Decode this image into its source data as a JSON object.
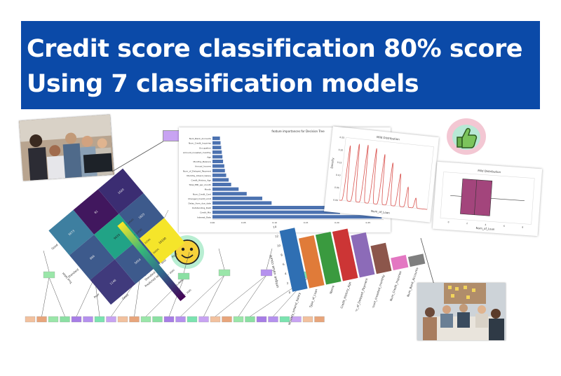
{
  "banner": {
    "line1": "Credit score classification 80% score",
    "line2": "Using 7 classification models",
    "bg_color": "#0b4aa8"
  },
  "feature_importance": {
    "title": "feature importances for Decision Tree",
    "features": [
      {
        "name": "Num_Bank_Accounts",
        "value": 0.012
      },
      {
        "name": "Num_Credit_Inquiries",
        "value": 0.013
      },
      {
        "name": "Occupation",
        "value": 0.014
      },
      {
        "name": "Amount_invested_monthly",
        "value": 0.015
      },
      {
        "name": "Age",
        "value": 0.016
      },
      {
        "name": "Monthly_Balance",
        "value": 0.017
      },
      {
        "name": "Annual_Income",
        "value": 0.019
      },
      {
        "name": "Num_of_Delayed_Payment",
        "value": 0.02
      },
      {
        "name": "Monthly_Inhand_Salary",
        "value": 0.022
      },
      {
        "name": "Credit_History_Age",
        "value": 0.026
      },
      {
        "name": "Total_EMI_per_month",
        "value": 0.03
      },
      {
        "name": "Month",
        "value": 0.042
      },
      {
        "name": "Num_Credit_Card",
        "value": 0.055
      },
      {
        "name": "Changed_Credit_Limit",
        "value": 0.08
      },
      {
        "name": "Delay_from_due_date",
        "value": 0.095
      },
      {
        "name": "Outstanding_Debt",
        "value": 0.182
      },
      {
        "name": "Credit_Mix",
        "value": 0.205
      },
      {
        "name": "Interest_Rate",
        "value": 0.272
      }
    ],
    "ticks": [
      "0.00",
      "0.05",
      "0.10",
      "0.15",
      "0.20",
      "0.25"
    ],
    "bar_color": "#4c72b0"
  },
  "kde_chart": {
    "title": "Mild Distribution",
    "xlabel": "Num_of_Loan",
    "ylabel": "Density",
    "yticks": [
      "0.25",
      "0.20",
      "0.15",
      "0.10",
      "0.05",
      "0.00"
    ],
    "color": "#d9534f"
  },
  "box_chart": {
    "title": "Mild Distribution",
    "xlabel": "Num_of_Loan",
    "color": "#a3457c",
    "xticks": [
      "0",
      "2",
      "4",
      "6",
      "8"
    ]
  },
  "confusion_matrix": {
    "cells": [
      "5673",
      "81",
      "1620",
      "866",
      "9033",
      "1825",
      "1146",
      "5654",
      "16100"
    ],
    "colors": [
      "#3e7fa0",
      "#41175e",
      "#3b2d72",
      "#3d5a8c",
      "#21a386",
      "#3d5a8c",
      "#403a7c",
      "#3d5a8c",
      "#f5e52a"
    ],
    "row_labels": [
      "Good",
      "Standard",
      "Poor"
    ],
    "xlabel": "Predicted label",
    "ylabel": "True label",
    "colorbar_ticks": [
      "16000",
      "14000",
      "12000",
      "10000",
      "8000",
      "6000",
      "4000",
      "2000"
    ]
  },
  "bar_chart": {
    "categories": [
      "Monthly_Inhand_Salary",
      "Type_of_Loan",
      "Name",
      "Credit_History_Age",
      "Num_of_Delayed_Payment",
      "Amount_invested_monthly",
      "Num_Credit_Inquiries",
      "Num_Bank_Accounts"
    ],
    "values": [
      14.8,
      12.1,
      12.1,
      12.0,
      10.2,
      6.8,
      3.0,
      2.4
    ],
    "colors": [
      "#2f6fb3",
      "#e07b39",
      "#3a9a3f",
      "#cc3535",
      "#8c6bb8",
      "#8c564b",
      "#e377c2",
      "#7f7f7f"
    ],
    "ylabel": "unique value count",
    "yticks": [
      "14",
      "12",
      "10",
      "8",
      "6",
      "4",
      "2",
      "0"
    ]
  },
  "decision_tree": {
    "node_colors": [
      "#f2c19e",
      "#e8a57b",
      "#9ae6a9",
      "#8be0a3",
      "#a77de6",
      "#b591ee",
      "#7be3b0",
      "#c8a3f2"
    ]
  },
  "icons": {
    "thumbs": "thumbs-up-icon",
    "smiley": "smiley-icon",
    "team_photo": "team-photo",
    "meeting_photo": "meeting-photo"
  }
}
